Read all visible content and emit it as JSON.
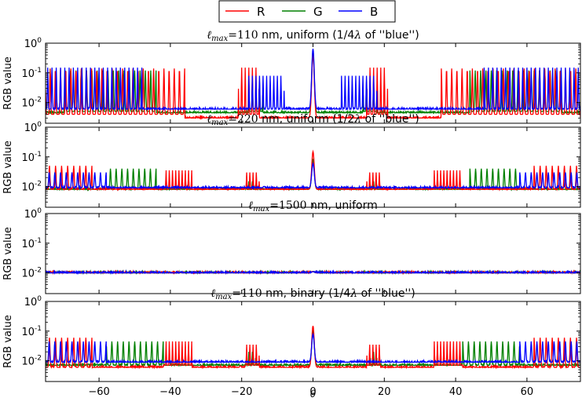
{
  "chart_data": {
    "type": "line",
    "legend": {
      "placement": "top-center",
      "entries": [
        {
          "name": "R",
          "color": "#ff0000"
        },
        {
          "name": "G",
          "color": "#008000"
        },
        {
          "name": "B",
          "color": "#0000ff"
        }
      ]
    },
    "xlabel": "θ",
    "xlim": [
      -75,
      75
    ],
    "xticks": [
      -60,
      -40,
      -20,
      0,
      20,
      40,
      60
    ],
    "ylabel": "RGB value",
    "yscale": "log",
    "ylim": [
      0.002,
      1
    ],
    "yticks": [
      {
        "value": 1,
        "mant": "10",
        "exp": "0"
      },
      {
        "value": 0.1,
        "mant": "10",
        "exp": "-1"
      },
      {
        "value": 0.01,
        "mant": "10",
        "exp": "-2"
      }
    ],
    "panels": [
      {
        "title_math": "ℓmax=110",
        "title_math_base": "ℓ",
        "title_math_sub": "max",
        "title_math_rest": "=110",
        "title_text": " nm, uniform (1/4",
        "title_lambda": "λ",
        "title_tail": " of ''blue'')",
        "baseline": {
          "R": 0.003,
          "G": 0.0045,
          "B": 0.006
        },
        "center_peak": {
          "R": 0.45,
          "G": 0.55,
          "B": 0.65
        },
        "bands": [
          {
            "series": "R",
            "from": 36,
            "to": 75,
            "spacing": 1.45,
            "peak": 0.14,
            "floor": 0.004
          },
          {
            "series": "G",
            "from": 44,
            "to": 70,
            "spacing": 1.5,
            "peak": 0.12,
            "floor": 0.005
          },
          {
            "series": "B",
            "from": 48,
            "to": 75,
            "spacing": 1.2,
            "peak": 0.15,
            "floor": 0.006
          },
          {
            "series": "R",
            "from": 15,
            "to": 21,
            "spacing": 1.0,
            "peak": 0.15,
            "floor": 0.004
          },
          {
            "series": "G",
            "from": 14,
            "to": 18,
            "spacing": 1.0,
            "peak": 0.05,
            "floor": 0.005
          },
          {
            "series": "B",
            "from": 8,
            "to": 18,
            "spacing": 1.0,
            "peak": 0.08,
            "floor": 0.006
          }
        ]
      },
      {
        "title_math_base": "ℓ",
        "title_math_sub": "max",
        "title_math_rest": "=220",
        "title_text": " nm, uniform (1/2",
        "title_lambda": "λ",
        "title_tail": " of ''blue'')",
        "baseline": {
          "R": 0.008,
          "G": 0.008,
          "B": 0.009
        },
        "center_peak": {
          "R": 0.15,
          "G": 0.08,
          "B": 0.06
        },
        "bands": [
          {
            "series": "R",
            "from": 34,
            "to": 42,
            "spacing": 0.9,
            "peak": 0.035,
            "floor": 0.008
          },
          {
            "series": "G",
            "from": 44,
            "to": 58,
            "spacing": 1.6,
            "peak": 0.04,
            "floor": 0.008
          },
          {
            "series": "R",
            "from": 62,
            "to": 75,
            "spacing": 1.7,
            "peak": 0.05,
            "floor": 0.007
          },
          {
            "series": "B",
            "from": 58,
            "to": 75,
            "spacing": 1.6,
            "peak": 0.03,
            "floor": 0.009
          },
          {
            "series": "R",
            "from": 15,
            "to": 19,
            "spacing": 0.9,
            "peak": 0.03,
            "floor": 0.008
          },
          {
            "series": "G",
            "from": 16,
            "to": 18,
            "spacing": 1.0,
            "peak": 0.015,
            "floor": 0.008
          }
        ]
      },
      {
        "title_math_base": "ℓ",
        "title_math_sub": "max",
        "title_math_rest": "=1500",
        "title_text": " nm, uniform",
        "title_lambda": "",
        "title_tail": "",
        "baseline": {
          "R": 0.01,
          "G": 0.01,
          "B": 0.01
        },
        "center_peak": {
          "R": 0.011,
          "G": 0.011,
          "B": 0.011
        },
        "bands": []
      },
      {
        "title_math_base": "ℓ",
        "title_math_sub": "max",
        "title_math_rest": "=110",
        "title_text": " nm, binary (1/4",
        "title_lambda": "λ",
        "title_tail": " of ''blue'')",
        "baseline": {
          "R": 0.006,
          "G": 0.007,
          "B": 0.009
        },
        "center_peak": {
          "R": 0.15,
          "G": 0.1,
          "B": 0.08
        },
        "bands": [
          {
            "series": "R",
            "from": 34,
            "to": 42,
            "spacing": 0.9,
            "peak": 0.045,
            "floor": 0.007
          },
          {
            "series": "G",
            "from": 42,
            "to": 58,
            "spacing": 1.6,
            "peak": 0.045,
            "floor": 0.007
          },
          {
            "series": "R",
            "from": 62,
            "to": 75,
            "spacing": 1.7,
            "peak": 0.06,
            "floor": 0.006
          },
          {
            "series": "B",
            "from": 58,
            "to": 75,
            "spacing": 1.6,
            "peak": 0.045,
            "floor": 0.009
          },
          {
            "series": "R",
            "from": 15,
            "to": 19,
            "spacing": 0.9,
            "peak": 0.035,
            "floor": 0.007
          },
          {
            "series": "G",
            "from": 16,
            "to": 18,
            "spacing": 1.0,
            "peak": 0.02,
            "floor": 0.007
          }
        ]
      }
    ]
  }
}
